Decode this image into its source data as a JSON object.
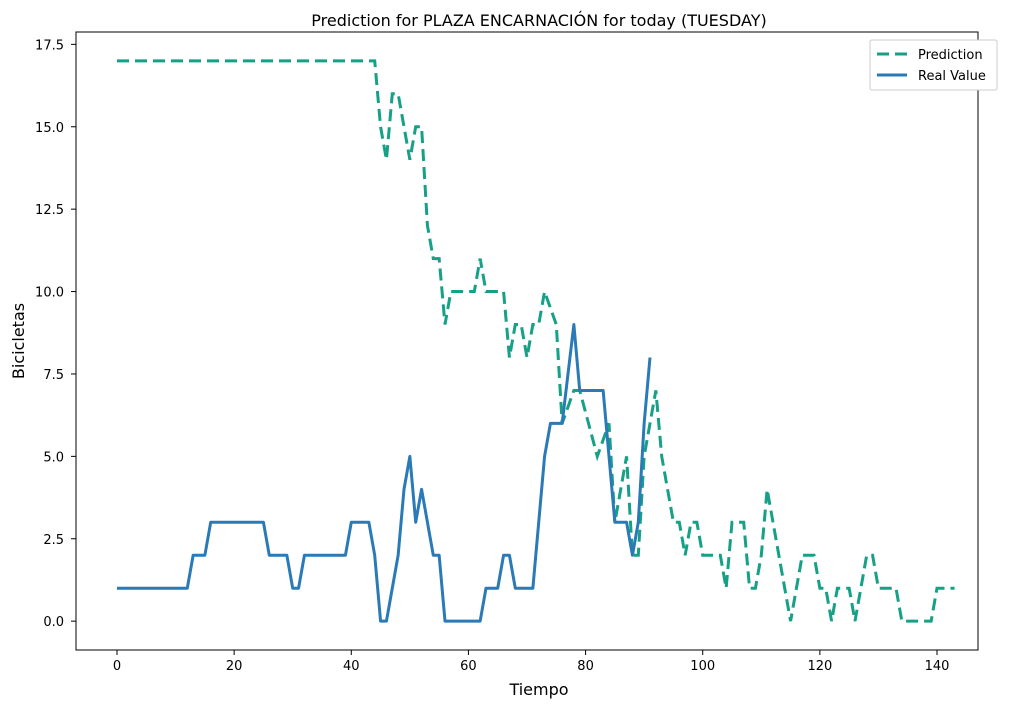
{
  "chart_data": {
    "type": "line",
    "title": "Prediction for PLAZA ENCARNACIÓN for today (TUESDAY)",
    "xlabel": "Tiempo",
    "ylabel": "Bicicletas",
    "xlim": [
      -7,
      147
    ],
    "ylim": [
      -0.875,
      17.875
    ],
    "xticks": [
      0,
      20,
      40,
      60,
      80,
      100,
      120,
      140
    ],
    "xtick_labels": [
      "0",
      "20",
      "40",
      "60",
      "80",
      "100",
      "120",
      "140"
    ],
    "yticks": [
      0.0,
      2.5,
      5.0,
      7.5,
      10.0,
      12.5,
      15.0,
      17.5
    ],
    "ytick_labels": [
      "0.0",
      "2.5",
      "5.0",
      "7.5",
      "10.0",
      "12.5",
      "15.0",
      "17.5"
    ],
    "grid": false,
    "legend_position": "top-right",
    "series": [
      {
        "name": "Prediction",
        "color": "#16a085",
        "style": "dashed",
        "points": [
          [
            0,
            17
          ],
          [
            44,
            17
          ],
          [
            45,
            15
          ],
          [
            46,
            14
          ],
          [
            47,
            16
          ],
          [
            48,
            16
          ],
          [
            49,
            15
          ],
          [
            50,
            14
          ],
          [
            51,
            15
          ],
          [
            52,
            15
          ],
          [
            53,
            12
          ],
          [
            54,
            11
          ],
          [
            55,
            11
          ],
          [
            56,
            9
          ],
          [
            57,
            10
          ],
          [
            61,
            10
          ],
          [
            62,
            11
          ],
          [
            63,
            10
          ],
          [
            66,
            10
          ],
          [
            67,
            8
          ],
          [
            68,
            9
          ],
          [
            69,
            9
          ],
          [
            70,
            8
          ],
          [
            71,
            9
          ],
          [
            72,
            9
          ],
          [
            73,
            10
          ],
          [
            75,
            9
          ],
          [
            76,
            6
          ],
          [
            78,
            7
          ],
          [
            79,
            7
          ],
          [
            82,
            5
          ],
          [
            84,
            6
          ],
          [
            85,
            3
          ],
          [
            86,
            4
          ],
          [
            87,
            5
          ],
          [
            88,
            2
          ],
          [
            89,
            2
          ],
          [
            90,
            5
          ],
          [
            91,
            6
          ],
          [
            92,
            7
          ],
          [
            93,
            5
          ],
          [
            95,
            3
          ],
          [
            96,
            3
          ],
          [
            97,
            2
          ],
          [
            98,
            3
          ],
          [
            99,
            3
          ],
          [
            100,
            2
          ],
          [
            103,
            2
          ],
          [
            104,
            1
          ],
          [
            105,
            3
          ],
          [
            107,
            3
          ],
          [
            108,
            1
          ],
          [
            109,
            1
          ],
          [
            110,
            2
          ],
          [
            111,
            4
          ],
          [
            112,
            3
          ],
          [
            115,
            0
          ],
          [
            116,
            1
          ],
          [
            117,
            2
          ],
          [
            119,
            2
          ],
          [
            120,
            1
          ],
          [
            121,
            1
          ],
          [
            122,
            0
          ],
          [
            123,
            1
          ],
          [
            125,
            1
          ],
          [
            126,
            0
          ],
          [
            128,
            2
          ],
          [
            129,
            2
          ],
          [
            130,
            1
          ],
          [
            133,
            1
          ],
          [
            134,
            0
          ],
          [
            139,
            0
          ],
          [
            140,
            1
          ],
          [
            143,
            1
          ]
        ]
      },
      {
        "name": "Real Value",
        "color": "#2a7ab8",
        "style": "solid",
        "points": [
          [
            0,
            1
          ],
          [
            12,
            1
          ],
          [
            13,
            2
          ],
          [
            15,
            2
          ],
          [
            16,
            3
          ],
          [
            25,
            3
          ],
          [
            26,
            2
          ],
          [
            29,
            2
          ],
          [
            30,
            1
          ],
          [
            31,
            1
          ],
          [
            32,
            2
          ],
          [
            39,
            2
          ],
          [
            40,
            3
          ],
          [
            43,
            3
          ],
          [
            44,
            2
          ],
          [
            45,
            0
          ],
          [
            46,
            0
          ],
          [
            47,
            1
          ],
          [
            48,
            2
          ],
          [
            49,
            4
          ],
          [
            50,
            5
          ],
          [
            51,
            3
          ],
          [
            52,
            4
          ],
          [
            54,
            2
          ],
          [
            55,
            2
          ],
          [
            56,
            0
          ],
          [
            62,
            0
          ],
          [
            63,
            1
          ],
          [
            65,
            1
          ],
          [
            66,
            2
          ],
          [
            67,
            2
          ],
          [
            68,
            1
          ],
          [
            71,
            1
          ],
          [
            73,
            5
          ],
          [
            74,
            6
          ],
          [
            76,
            6
          ],
          [
            78,
            9
          ],
          [
            79,
            7
          ],
          [
            83,
            7
          ],
          [
            84,
            5
          ],
          [
            85,
            3
          ],
          [
            87,
            3
          ],
          [
            88,
            2
          ],
          [
            89,
            3
          ],
          [
            90,
            6
          ],
          [
            91,
            8
          ]
        ]
      }
    ]
  }
}
